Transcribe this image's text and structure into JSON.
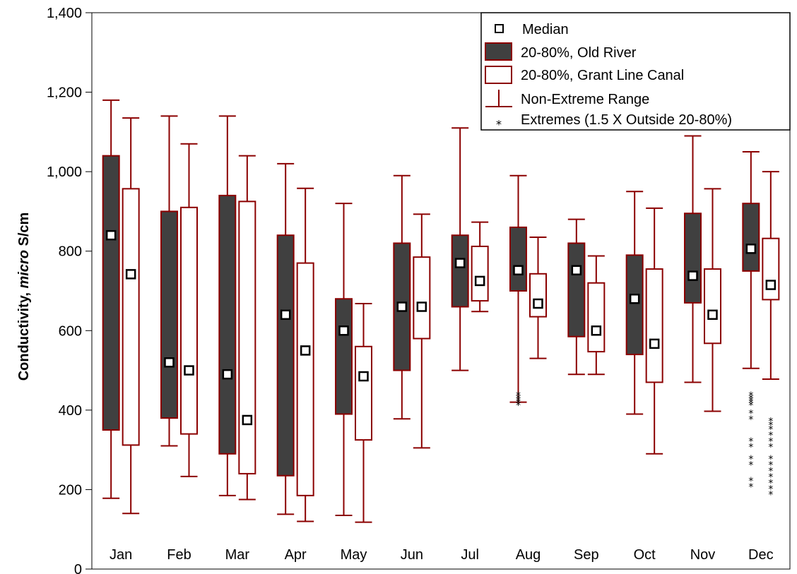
{
  "chart_data": {
    "type": "box",
    "title": "",
    "xlabel": "",
    "ylabel_prefix": "Conductivity, ",
    "ylabel_italic": "micro",
    "ylabel_suffix": " S/cm",
    "ylim": [
      0,
      1400
    ],
    "yticks": [
      0,
      200,
      400,
      600,
      800,
      1000,
      1200,
      1400
    ],
    "ytick_labels": [
      "0",
      "200",
      "400",
      "600",
      "800",
      "1,000",
      "1,200",
      "1,400"
    ],
    "categories": [
      "Jan",
      "Feb",
      "Mar",
      "Apr",
      "May",
      "Jun",
      "Jul",
      "Aug",
      "Sep",
      "Oct",
      "Nov",
      "Dec"
    ],
    "grid": false,
    "legend_position": "top-right",
    "legend": {
      "median": "Median",
      "old_river": "20-80%, Old River",
      "grant_line": "20-80%, Grant Line Canal",
      "range": "Non-Extreme Range",
      "extremes": "Extremes (1.5 X Outside 20-80%)"
    },
    "colors": {
      "old_river_fill": "#404040",
      "stroke": "#8b0000",
      "grant_line_fill": "#ffffff"
    },
    "series": [
      {
        "name": "20-80%, Old River",
        "median": [
          840,
          520,
          490,
          640,
          600,
          660,
          770,
          752,
          752,
          680,
          738,
          806
        ],
        "q20": [
          350,
          380,
          290,
          235,
          390,
          500,
          660,
          700,
          585,
          540,
          670,
          750
        ],
        "q80": [
          1040,
          900,
          940,
          840,
          680,
          820,
          840,
          860,
          820,
          790,
          895,
          920
        ],
        "min": [
          178,
          310,
          185,
          138,
          135,
          378,
          500,
          420,
          490,
          390,
          470,
          505
        ],
        "max": [
          1180,
          1140,
          1140,
          1020,
          920,
          990,
          1110,
          990,
          880,
          950,
          1090,
          1050
        ],
        "extremes": [
          [],
          [],
          [],
          [],
          [],
          [],
          [],
          [
            445,
            438,
            432,
            426,
            420
          ],
          [],
          [],
          [],
          [
            445,
            438,
            432,
            426,
            420,
            400,
            385,
            330,
            315,
            285,
            270,
            230,
            215
          ]
        ]
      },
      {
        "name": "20-80%, Grant Line Canal",
        "median": [
          742,
          500,
          375,
          550,
          485,
          660,
          725,
          668,
          600,
          567,
          640,
          715
        ],
        "q20": [
          312,
          340,
          240,
          185,
          325,
          580,
          675,
          635,
          547,
          470,
          568,
          678
        ],
        "q80": [
          957,
          910,
          925,
          770,
          560,
          785,
          812,
          743,
          720,
          755,
          755,
          832
        ],
        "min": [
          140,
          233,
          175,
          120,
          118,
          305,
          648,
          530,
          490,
          290,
          397,
          478
        ],
        "max": [
          1135,
          1070,
          1040,
          958,
          668,
          893,
          873,
          835,
          788,
          908,
          957,
          1000
        ],
        "extremes": [
          [],
          [],
          [],
          [],
          [],
          [],
          [],
          [],
          [],
          [],
          [],
          [
            380,
            370,
            360,
            345,
            330,
            315,
            285,
            270,
            255,
            240,
            225,
            210,
            195
          ]
        ]
      }
    ]
  }
}
